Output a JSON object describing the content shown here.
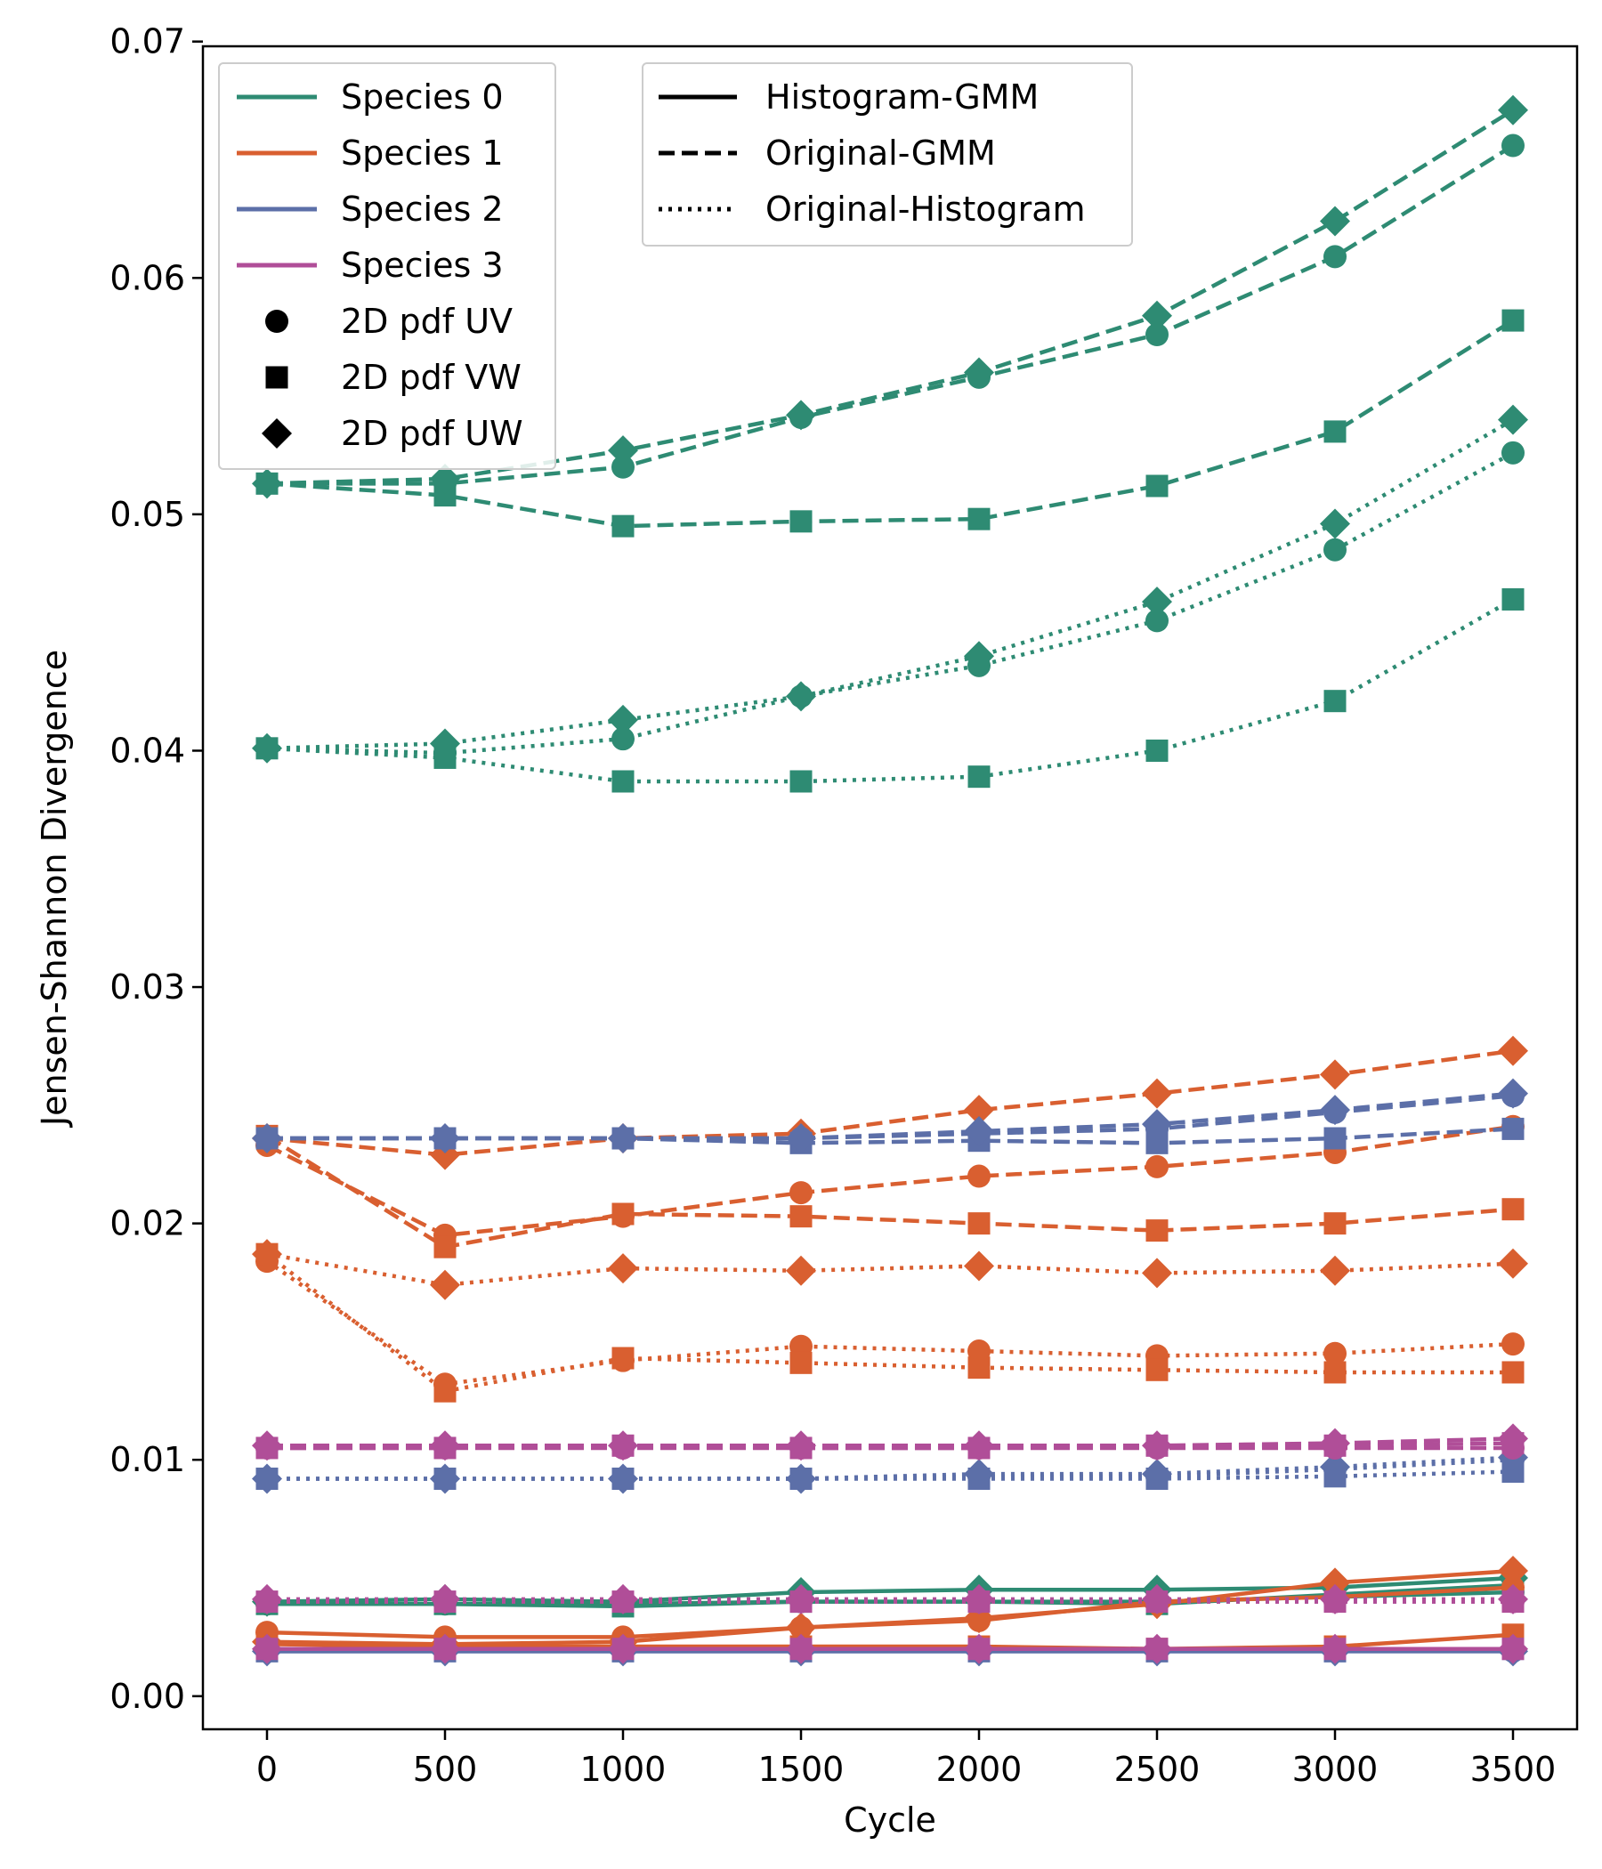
{
  "chart_data": {
    "type": "line",
    "xlabel": "Cycle",
    "ylabel": "Jensen-Shannon Divergence",
    "xlim": [
      -180,
      3680
    ],
    "ylim": [
      -0.0014,
      0.0698
    ],
    "x_ticks": [
      0,
      500,
      1000,
      1500,
      2000,
      2500,
      3000,
      3500
    ],
    "y_ticks": [
      0.0,
      0.01,
      0.02,
      0.03,
      0.04,
      0.05,
      0.06,
      0.07
    ],
    "y_tick_labels": [
      "0.00",
      "0.01",
      "0.02",
      "0.03",
      "0.04",
      "0.05",
      "0.06",
      "0.07"
    ],
    "x": [
      0,
      500,
      1000,
      1500,
      2000,
      2500,
      3000,
      3500
    ],
    "species_colors": {
      "Species 0": "#2e8b73",
      "Species 1": "#d95f30",
      "Species 2": "#5c6fa8",
      "Species 3": "#b04e98"
    },
    "legend_species": {
      "position": "upper-left",
      "entries": [
        {
          "label": "Species 0",
          "kind": "line",
          "color": "#2e8b73"
        },
        {
          "label": "Species 1",
          "kind": "line",
          "color": "#d95f30"
        },
        {
          "label": "Species 2",
          "kind": "line",
          "color": "#5c6fa8"
        },
        {
          "label": "Species 3",
          "kind": "line",
          "color": "#b04e98"
        },
        {
          "label": "2D pdf UV",
          "kind": "marker",
          "marker": "circle"
        },
        {
          "label": "2D pdf VW",
          "kind": "marker",
          "marker": "square"
        },
        {
          "label": "2D pdf UW",
          "kind": "marker",
          "marker": "diamond"
        }
      ]
    },
    "legend_comparison": {
      "position": "upper-center",
      "entries": [
        {
          "label": "Histogram-GMM",
          "style": "solid"
        },
        {
          "label": "Original-GMM",
          "style": "dashed"
        },
        {
          "label": "Original-Histogram",
          "style": "dotted"
        }
      ]
    },
    "series": [
      {
        "species": "Species 0",
        "comparison": "Original-GMM",
        "pdf": "2D pdf UV",
        "values": [
          0.0513,
          0.0513,
          0.052,
          0.0541,
          0.0558,
          0.0576,
          0.0609,
          0.0656
        ]
      },
      {
        "species": "Species 0",
        "comparison": "Original-GMM",
        "pdf": "2D pdf VW",
        "values": [
          0.0513,
          0.0508,
          0.0495,
          0.0497,
          0.0498,
          0.0512,
          0.0535,
          0.0582
        ]
      },
      {
        "species": "Species 0",
        "comparison": "Original-GMM",
        "pdf": "2D pdf UW",
        "values": [
          0.0513,
          0.0515,
          0.0527,
          0.0542,
          0.056,
          0.0584,
          0.0624,
          0.0671
        ]
      },
      {
        "species": "Species 0",
        "comparison": "Original-Histogram",
        "pdf": "2D pdf UV",
        "values": [
          0.0401,
          0.0399,
          0.0405,
          0.0423,
          0.0436,
          0.0455,
          0.0485,
          0.0526
        ]
      },
      {
        "species": "Species 0",
        "comparison": "Original-Histogram",
        "pdf": "2D pdf VW",
        "values": [
          0.0401,
          0.0397,
          0.0387,
          0.0387,
          0.0389,
          0.04,
          0.0421,
          0.0464
        ]
      },
      {
        "species": "Species 0",
        "comparison": "Original-Histogram",
        "pdf": "2D pdf UW",
        "values": [
          0.0401,
          0.0403,
          0.0413,
          0.0423,
          0.044,
          0.0463,
          0.0496,
          0.054
        ]
      },
      {
        "species": "Species 0",
        "comparison": "Histogram-GMM",
        "pdf": "2D pdf UV",
        "values": [
          0.0039,
          0.0039,
          0.0039,
          0.004,
          0.004,
          0.004,
          0.0042,
          0.0044
        ]
      },
      {
        "species": "Species 0",
        "comparison": "Histogram-GMM",
        "pdf": "2D pdf VW",
        "values": [
          0.0039,
          0.0039,
          0.0038,
          0.004,
          0.004,
          0.0039,
          0.0043,
          0.0047
        ]
      },
      {
        "species": "Species 0",
        "comparison": "Histogram-GMM",
        "pdf": "2D pdf UW",
        "values": [
          0.004,
          0.0041,
          0.004,
          0.0044,
          0.0045,
          0.0045,
          0.0046,
          0.005
        ]
      },
      {
        "species": "Species 1",
        "comparison": "Original-GMM",
        "pdf": "2D pdf UV",
        "values": [
          0.0233,
          0.0195,
          0.0203,
          0.0213,
          0.022,
          0.0224,
          0.023,
          0.0241
        ]
      },
      {
        "species": "Species 1",
        "comparison": "Original-GMM",
        "pdf": "2D pdf VW",
        "values": [
          0.0237,
          0.019,
          0.0204,
          0.0203,
          0.02,
          0.0197,
          0.02,
          0.0206
        ]
      },
      {
        "species": "Species 1",
        "comparison": "Original-GMM",
        "pdf": "2D pdf UW",
        "values": [
          0.0236,
          0.0229,
          0.0236,
          0.0238,
          0.0248,
          0.0255,
          0.0263,
          0.0273
        ]
      },
      {
        "species": "Species 1",
        "comparison": "Original-Histogram",
        "pdf": "2D pdf UV",
        "values": [
          0.0184,
          0.0132,
          0.0142,
          0.0148,
          0.0146,
          0.0144,
          0.0145,
          0.0149
        ]
      },
      {
        "species": "Species 1",
        "comparison": "Original-Histogram",
        "pdf": "2D pdf VW",
        "values": [
          0.0187,
          0.0129,
          0.0143,
          0.0141,
          0.0139,
          0.0138,
          0.0137,
          0.0137
        ]
      },
      {
        "species": "Species 1",
        "comparison": "Original-Histogram",
        "pdf": "2D pdf UW",
        "values": [
          0.0187,
          0.0174,
          0.0181,
          0.018,
          0.0182,
          0.0179,
          0.018,
          0.0183
        ]
      },
      {
        "species": "Species 1",
        "comparison": "Histogram-GMM",
        "pdf": "2D pdf UV",
        "values": [
          0.0027,
          0.0025,
          0.0025,
          0.0029,
          0.0032,
          0.004,
          0.0042,
          0.0046
        ]
      },
      {
        "species": "Species 1",
        "comparison": "Histogram-GMM",
        "pdf": "2D pdf VW",
        "values": [
          0.0022,
          0.0021,
          0.0021,
          0.0021,
          0.0021,
          0.002,
          0.0021,
          0.0026
        ]
      },
      {
        "species": "Species 1",
        "comparison": "Histogram-GMM",
        "pdf": "2D pdf UW",
        "values": [
          0.0023,
          0.0022,
          0.0023,
          0.0029,
          0.0033,
          0.0039,
          0.0048,
          0.0053
        ]
      },
      {
        "species": "Species 2",
        "comparison": "Original-GMM",
        "pdf": "2D pdf UV",
        "values": [
          0.0236,
          0.0236,
          0.0236,
          0.0236,
          0.0238,
          0.024,
          0.0247,
          0.0254
        ]
      },
      {
        "species": "Species 2",
        "comparison": "Original-GMM",
        "pdf": "2D pdf VW",
        "values": [
          0.0236,
          0.0236,
          0.0236,
          0.0234,
          0.0235,
          0.0234,
          0.0236,
          0.024
        ]
      },
      {
        "species": "Species 2",
        "comparison": "Original-GMM",
        "pdf": "2D pdf UW",
        "values": [
          0.0236,
          0.0236,
          0.0236,
          0.0236,
          0.0239,
          0.0242,
          0.0248,
          0.0255
        ]
      },
      {
        "species": "Species 2",
        "comparison": "Original-Histogram",
        "pdf": "2D pdf UV",
        "values": [
          0.0092,
          0.0092,
          0.0092,
          0.0092,
          0.0093,
          0.0093,
          0.0096,
          0.01
        ]
      },
      {
        "species": "Species 2",
        "comparison": "Original-Histogram",
        "pdf": "2D pdf VW",
        "values": [
          0.0092,
          0.0092,
          0.0092,
          0.0092,
          0.0092,
          0.0092,
          0.0093,
          0.0095
        ]
      },
      {
        "species": "Species 2",
        "comparison": "Original-Histogram",
        "pdf": "2D pdf UW",
        "values": [
          0.0092,
          0.0092,
          0.0092,
          0.0092,
          0.0094,
          0.0094,
          0.0097,
          0.0101
        ]
      },
      {
        "species": "Species 2",
        "comparison": "Histogram-GMM",
        "pdf": "2D pdf UV",
        "values": [
          0.0019,
          0.0019,
          0.0019,
          0.0019,
          0.0019,
          0.0019,
          0.0019,
          0.0019
        ]
      },
      {
        "species": "Species 2",
        "comparison": "Histogram-GMM",
        "pdf": "2D pdf VW",
        "values": [
          0.0019,
          0.0019,
          0.0019,
          0.0019,
          0.0019,
          0.0019,
          0.0019,
          0.002
        ]
      },
      {
        "species": "Species 2",
        "comparison": "Histogram-GMM",
        "pdf": "2D pdf UW",
        "values": [
          0.0019,
          0.0019,
          0.0019,
          0.0019,
          0.0019,
          0.0019,
          0.0019,
          0.0019
        ]
      },
      {
        "species": "Species 3",
        "comparison": "Original-GMM",
        "pdf": "2D pdf UV",
        "values": [
          0.0105,
          0.0105,
          0.0105,
          0.0105,
          0.0105,
          0.0105,
          0.0105,
          0.0105
        ]
      },
      {
        "species": "Species 3",
        "comparison": "Original-GMM",
        "pdf": "2D pdf VW",
        "values": [
          0.0105,
          0.0105,
          0.0106,
          0.0105,
          0.0105,
          0.0106,
          0.0106,
          0.0107
        ]
      },
      {
        "species": "Species 3",
        "comparison": "Original-GMM",
        "pdf": "2D pdf UW",
        "values": [
          0.0106,
          0.0106,
          0.0106,
          0.0106,
          0.0106,
          0.0106,
          0.0107,
          0.0109
        ]
      },
      {
        "species": "Species 3",
        "comparison": "Original-Histogram",
        "pdf": "2D pdf UV",
        "values": [
          0.004,
          0.004,
          0.004,
          0.004,
          0.004,
          0.004,
          0.004,
          0.004
        ]
      },
      {
        "species": "Species 3",
        "comparison": "Original-Histogram",
        "pdf": "2D pdf VW",
        "values": [
          0.004,
          0.004,
          0.004,
          0.004,
          0.004,
          0.004,
          0.004,
          0.004
        ]
      },
      {
        "species": "Species 3",
        "comparison": "Original-Histogram",
        "pdf": "2D pdf UW",
        "values": [
          0.0041,
          0.0041,
          0.0041,
          0.0041,
          0.0041,
          0.0041,
          0.0041,
          0.0041
        ]
      },
      {
        "species": "Species 3",
        "comparison": "Histogram-GMM",
        "pdf": "2D pdf UV",
        "values": [
          0.002,
          0.002,
          0.002,
          0.002,
          0.002,
          0.002,
          0.002,
          0.002
        ]
      },
      {
        "species": "Species 3",
        "comparison": "Histogram-GMM",
        "pdf": "2D pdf VW",
        "values": [
          0.002,
          0.002,
          0.002,
          0.002,
          0.002,
          0.002,
          0.002,
          0.002
        ]
      },
      {
        "species": "Species 3",
        "comparison": "Histogram-GMM",
        "pdf": "2D pdf UW",
        "values": [
          0.002,
          0.002,
          0.002,
          0.002,
          0.002,
          0.002,
          0.002,
          0.002
        ]
      }
    ]
  }
}
